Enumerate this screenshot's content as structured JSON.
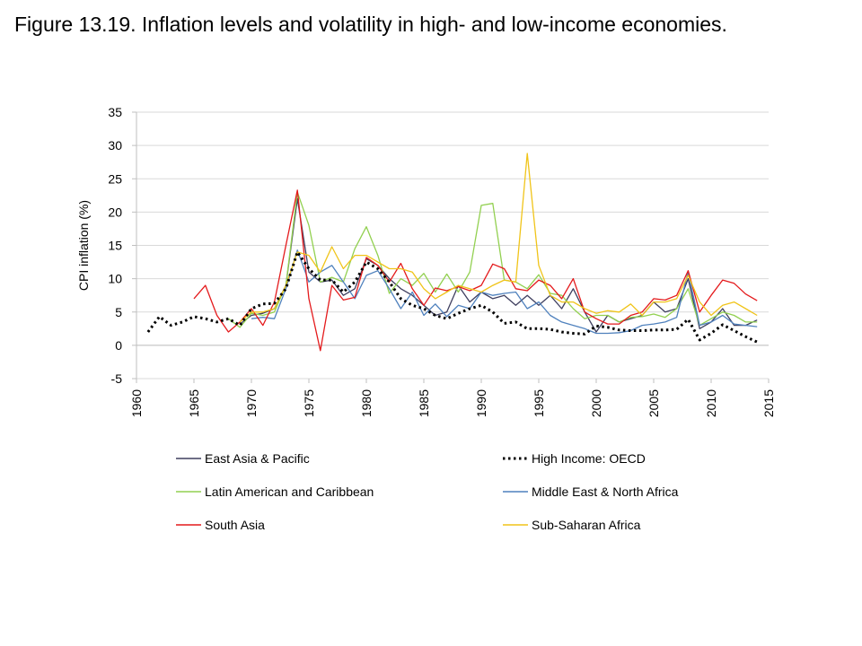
{
  "title": "Figure 13.19. Inflation levels and volatility in high- and low-income economies.",
  "chart_data": {
    "type": "line",
    "ylabel": "CPI inflation (%)",
    "xlabel": "",
    "xlim": [
      1960,
      2015
    ],
    "ylim": [
      -5,
      35
    ],
    "x_ticks": [
      1960,
      1965,
      1970,
      1975,
      1980,
      1985,
      1990,
      1995,
      2000,
      2005,
      2010,
      2015
    ],
    "y_ticks": [
      -5,
      0,
      5,
      10,
      15,
      20,
      25,
      30,
      35
    ],
    "grid": "horizontal",
    "legend": "bottom",
    "series": [
      {
        "name": "East Asia & Pacific",
        "color": "#3f3f5f",
        "dash": "solid",
        "x": [
          1969,
          1970,
          1971,
          1972,
          1973,
          1974,
          1975,
          1976,
          1977,
          1978,
          1979,
          1980,
          1981,
          1982,
          1983,
          1984,
          1985,
          1986,
          1987,
          1988,
          1989,
          1990,
          1991,
          1992,
          1993,
          1994,
          1995,
          1996,
          1997,
          1998,
          1999,
          2000,
          2001,
          2002,
          2003,
          2004,
          2005,
          2006,
          2007,
          2008,
          2009,
          2010,
          2011,
          2012,
          2013,
          2014
        ],
        "y": [
          3.2,
          4.5,
          4.8,
          5.5,
          9.0,
          22.0,
          11.0,
          9.5,
          9.8,
          7.5,
          8.5,
          13.0,
          12.0,
          10.0,
          8.5,
          7.5,
          6.0,
          4.5,
          5.0,
          9.0,
          6.5,
          8.0,
          7.0,
          7.5,
          6.0,
          7.5,
          6.0,
          7.5,
          5.5,
          8.5,
          5.0,
          2.0,
          4.5,
          3.5,
          4.0,
          4.5,
          6.5,
          5.0,
          5.5,
          10.0,
          2.5,
          3.5,
          5.5,
          3.0,
          3.0,
          3.8
        ]
      },
      {
        "name": "High Income: OECD",
        "color": "#000000",
        "dash": "dotted",
        "x": [
          1961,
          1962,
          1963,
          1964,
          1965,
          1966,
          1967,
          1968,
          1969,
          1970,
          1971,
          1972,
          1973,
          1974,
          1975,
          1976,
          1977,
          1978,
          1979,
          1980,
          1981,
          1982,
          1983,
          1984,
          1985,
          1986,
          1987,
          1988,
          1989,
          1990,
          1991,
          1992,
          1993,
          1994,
          1995,
          1996,
          1997,
          1998,
          1999,
          2000,
          2001,
          2002,
          2003,
          2004,
          2005,
          2006,
          2007,
          2008,
          2009,
          2010,
          2011,
          2012,
          2013,
          2014
        ],
        "y": [
          2.0,
          4.3,
          3.0,
          3.5,
          4.3,
          4.0,
          3.5,
          4.0,
          3.0,
          5.5,
          6.2,
          6.3,
          8.5,
          14.0,
          11.5,
          9.8,
          9.8,
          8.0,
          9.5,
          12.5,
          11.5,
          9.5,
          7.0,
          6.0,
          5.5,
          4.5,
          4.0,
          4.8,
          5.5,
          6.0,
          5.0,
          3.3,
          3.5,
          2.5,
          2.5,
          2.4,
          2.0,
          1.8,
          1.7,
          2.9,
          2.7,
          2.3,
          2.2,
          2.2,
          2.3,
          2.3,
          2.4,
          3.9,
          0.8,
          1.8,
          3.1,
          2.2,
          1.3,
          0.5
        ]
      },
      {
        "name": "Latin American and Caribbean",
        "color": "#92d050",
        "dash": "solid",
        "x": [
          1968,
          1969,
          1970,
          1971,
          1972,
          1973,
          1974,
          1975,
          1976,
          1977,
          1978,
          1979,
          1980,
          1981,
          1982,
          1983,
          1984,
          1985,
          1986,
          1987,
          1988,
          1989,
          1990,
          1991,
          1992,
          1993,
          1994,
          1995,
          1996,
          1997,
          1998,
          1999,
          2000,
          2001,
          2002,
          2003,
          2004,
          2005,
          2006,
          2007,
          2008,
          2009,
          2010,
          2011,
          2012,
          2013,
          2014
        ],
        "y": [
          4.0,
          2.7,
          4.8,
          4.5,
          5.0,
          9.0,
          23.0,
          18.0,
          9.5,
          10.2,
          9.5,
          14.5,
          17.8,
          13.5,
          7.8,
          10.0,
          9.0,
          10.8,
          8.0,
          10.7,
          8.0,
          11.0,
          21.0,
          21.3,
          9.8,
          9.5,
          8.5,
          10.6,
          7.8,
          7.5,
          5.5,
          4.0,
          4.5,
          4.5,
          3.5,
          4.2,
          4.3,
          4.7,
          4.2,
          5.5,
          8.5,
          3.0,
          4.0,
          5.0,
          4.5,
          3.5,
          3.5
        ]
      },
      {
        "name": "Middle East & North Africa",
        "color": "#4f81bd",
        "dash": "solid",
        "x": [
          1970,
          1971,
          1972,
          1973,
          1974,
          1975,
          1976,
          1977,
          1978,
          1979,
          1980,
          1981,
          1982,
          1983,
          1984,
          1985,
          1986,
          1987,
          1988,
          1989,
          1990,
          1991,
          1992,
          1993,
          1994,
          1995,
          1996,
          1997,
          1998,
          1999,
          2000,
          2001,
          2002,
          2003,
          2004,
          2005,
          2006,
          2007,
          2008,
          2009,
          2010,
          2011,
          2012,
          2013,
          2014
        ],
        "y": [
          4.0,
          4.2,
          4.0,
          8.5,
          14.3,
          9.5,
          11.0,
          12.0,
          9.5,
          7.0,
          10.5,
          11.2,
          8.5,
          5.5,
          8.0,
          4.5,
          6.2,
          4.3,
          6.0,
          5.5,
          8.0,
          7.5,
          7.8,
          8.0,
          5.5,
          6.5,
          4.5,
          3.5,
          3.0,
          2.5,
          1.8,
          1.8,
          1.9,
          2.2,
          3.0,
          3.2,
          3.5,
          4.2,
          11.0,
          3.0,
          3.5,
          4.5,
          3.2,
          3.0,
          2.8
        ]
      },
      {
        "name": "South Asia",
        "color": "#e41a1c",
        "dash": "solid",
        "x": [
          1965,
          1966,
          1967,
          1968,
          1969,
          1970,
          1971,
          1972,
          1973,
          1974,
          1975,
          1976,
          1977,
          1978,
          1979,
          1980,
          1981,
          1982,
          1983,
          1984,
          1985,
          1986,
          1987,
          1988,
          1989,
          1990,
          1991,
          1992,
          1993,
          1994,
          1995,
          1996,
          1997,
          1998,
          1999,
          2000,
          2001,
          2002,
          2003,
          2004,
          2005,
          2006,
          2007,
          2008,
          2009,
          2010,
          2011,
          2012,
          2013,
          2014
        ],
        "y": [
          7.0,
          9.0,
          4.5,
          2.0,
          3.5,
          5.5,
          3.0,
          6.5,
          15.0,
          23.3,
          7.0,
          -0.8,
          9.0,
          6.8,
          7.2,
          13.2,
          12.0,
          9.5,
          12.3,
          8.5,
          6.0,
          8.6,
          8.2,
          8.8,
          8.2,
          9.0,
          12.2,
          11.5,
          8.5,
          8.2,
          9.8,
          9.0,
          7.0,
          10.0,
          5.0,
          4.0,
          3.2,
          3.2,
          4.5,
          5.0,
          7.0,
          6.8,
          7.5,
          11.2,
          5.0,
          7.5,
          9.8,
          9.3,
          7.7,
          6.7
        ]
      },
      {
        "name": "Sub-Saharan Africa",
        "color": "#f0c419",
        "dash": "solid",
        "x": [
          1969,
          1970,
          1971,
          1972,
          1973,
          1974,
          1975,
          1976,
          1977,
          1978,
          1979,
          1980,
          1981,
          1982,
          1983,
          1984,
          1985,
          1986,
          1987,
          1988,
          1989,
          1990,
          1991,
          1992,
          1993,
          1994,
          1995,
          1996,
          1997,
          1998,
          1999,
          2000,
          2001,
          2002,
          2003,
          2004,
          2005,
          2006,
          2007,
          2008,
          2009,
          2010,
          2011,
          2012,
          2013,
          2014
        ],
        "y": [
          3.5,
          5.0,
          5.0,
          5.5,
          9.0,
          14.0,
          13.5,
          11.0,
          14.8,
          11.5,
          13.5,
          13.5,
          12.5,
          11.5,
          11.5,
          11.0,
          8.5,
          7.0,
          8.0,
          9.0,
          8.5,
          8.0,
          9.0,
          9.8,
          9.5,
          28.8,
          12.0,
          7.5,
          6.5,
          6.5,
          5.5,
          4.8,
          5.2,
          5.0,
          6.2,
          4.5,
          6.5,
          6.5,
          7.0,
          10.5,
          6.5,
          4.5,
          6.0,
          6.5,
          5.5,
          4.5
        ]
      }
    ]
  }
}
